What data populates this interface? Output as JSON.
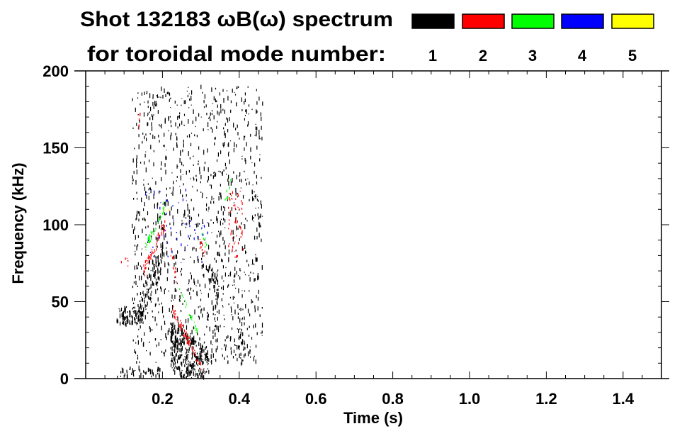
{
  "header": {
    "title": "Shot 132183 ωB(ω) spectrum",
    "subtitle": "for toroidal mode number:"
  },
  "legend": [
    {
      "label": "1",
      "color": "#000000"
    },
    {
      "label": "2",
      "color": "#ff0000"
    },
    {
      "label": "3",
      "color": "#00ff00"
    },
    {
      "label": "4",
      "color": "#0000ff"
    },
    {
      "label": "5",
      "color": "#ffff00"
    }
  ],
  "chart_data": {
    "type": "heatmap",
    "title": "Shot 132183 ωB(ω) spectrum",
    "xlabel": "Time (s)",
    "ylabel": "Frequency (kHz)",
    "xlim": [
      0,
      1.5
    ],
    "ylim": [
      0,
      200
    ],
    "xticks": [
      0.2,
      0.4,
      0.6,
      0.8,
      1.0,
      1.2,
      1.4
    ],
    "xtick_labels": [
      "0.2",
      "0.4",
      "0.6",
      "0.8",
      "1.0",
      "1.2",
      "1.4"
    ],
    "yticks": [
      0,
      50,
      100,
      150,
      200
    ],
    "ytick_labels": [
      "0",
      "50",
      "100",
      "150",
      "200"
    ],
    "x_minor_step": 0.05,
    "y_minor_step": 10,
    "color_by": "toroidal mode number",
    "features": [
      {
        "mode": 1,
        "t": [
          0.08,
          0.15
        ],
        "f": [
          40,
          42
        ],
        "spread": 6,
        "density": 1.0
      },
      {
        "mode": 1,
        "t": [
          0.14,
          0.2
        ],
        "f": [
          45,
          80
        ],
        "spread": 10,
        "density": 0.9
      },
      {
        "mode": 1,
        "t": [
          0.08,
          0.2
        ],
        "f": [
          4,
          4
        ],
        "spread": 3,
        "density": 0.4
      },
      {
        "mode": 1,
        "t": [
          0.22,
          0.32
        ],
        "f": [
          22,
          2
        ],
        "spread": 16,
        "density": 1.4
      },
      {
        "mode": 1,
        "t": [
          0.3,
          0.34
        ],
        "f": [
          78,
          60
        ],
        "spread": 6,
        "density": 0.6
      },
      {
        "mode": 1,
        "t": [
          0.335,
          0.345
        ],
        "f": [
          50,
          45
        ],
        "spread": 25,
        "density": 0.7
      },
      {
        "mode": 1,
        "t": [
          0.395,
          0.41
        ],
        "f": [
          30,
          25
        ],
        "spread": 18,
        "density": 0.6
      },
      {
        "mode": 1,
        "t": [
          0.12,
          0.46
        ],
        "f": [
          100,
          100
        ],
        "spread": 90,
        "density": 0.25
      },
      {
        "mode": 2,
        "t": [
          0.15,
          0.205
        ],
        "f": [
          70,
          100
        ],
        "spread": 4,
        "density": 1.0
      },
      {
        "mode": 2,
        "t": [
          0.225,
          0.3
        ],
        "f": [
          45,
          8
        ],
        "spread": 3,
        "density": 1.0
      },
      {
        "mode": 2,
        "t": [
          0.22,
          0.235
        ],
        "f": [
          82,
          65
        ],
        "spread": 5,
        "density": 0.6
      },
      {
        "mode": 2,
        "t": [
          0.295,
          0.31
        ],
        "f": [
          88,
          80
        ],
        "spread": 4,
        "density": 0.6
      },
      {
        "mode": 2,
        "t": [
          0.13,
          0.145
        ],
        "f": [
          150,
          180
        ],
        "spread": 2,
        "density": 0.5
      },
      {
        "mode": 2,
        "t": [
          0.37,
          0.41
        ],
        "f": [
          100,
          100
        ],
        "spread": 22,
        "density": 0.4
      },
      {
        "mode": 2,
        "t": [
          0.09,
          0.11
        ],
        "f": [
          74,
          76
        ],
        "spread": 3,
        "density": 0.3
      },
      {
        "mode": 3,
        "t": [
          0.155,
          0.205
        ],
        "f": [
          85,
          113
        ],
        "spread": 3,
        "density": 0.8
      },
      {
        "mode": 3,
        "t": [
          0.24,
          0.29
        ],
        "f": [
          60,
          30
        ],
        "spread": 2,
        "density": 0.6
      },
      {
        "mode": 3,
        "t": [
          0.3,
          0.315
        ],
        "f": [
          95,
          85
        ],
        "spread": 3,
        "density": 0.5
      },
      {
        "mode": 3,
        "t": [
          0.36,
          0.38
        ],
        "f": [
          115,
          130
        ],
        "spread": 5,
        "density": 0.3
      },
      {
        "mode": 4,
        "t": [
          0.15,
          0.32
        ],
        "f": [
          100,
          100
        ],
        "spread": 25,
        "density": 0.08
      },
      {
        "mode": 5,
        "t": [
          0.2,
          0.25
        ],
        "f": [
          108,
          110
        ],
        "spread": 3,
        "density": 0.05
      }
    ]
  }
}
